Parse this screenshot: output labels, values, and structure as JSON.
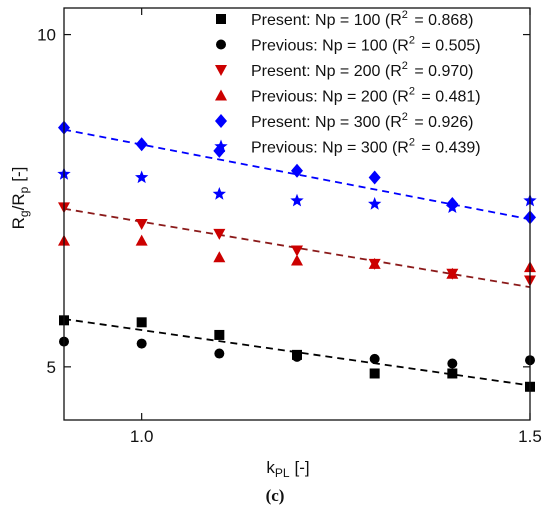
{
  "panel_label": "(c)",
  "chart_data": {
    "type": "scatter",
    "xlabel": "k",
    "xlabel_sub": "PL",
    "xlabel_unit": "[-]",
    "ylabel": "R",
    "ylabel_sub1": "g",
    "ylabel_mid": "/R",
    "ylabel_sub2": "p",
    "ylabel_unit": "[-]",
    "xlim": [
      0.9,
      1.5
    ],
    "ylim": [
      4.2,
      10.4
    ],
    "xticks": [
      1.0,
      1.5
    ],
    "xtick_labels": [
      "1.0",
      "1.5"
    ],
    "yticks": [
      5,
      10
    ],
    "ytick_labels": [
      "5",
      "10"
    ],
    "grid": false,
    "legend_position": "top-right",
    "series": [
      {
        "name": "Present: Np = 100",
        "r2_label": "R",
        "r2_sup": "2",
        "r2_value": "= 0.868",
        "marker": "square",
        "color": "#000000",
        "x": [
          0.9,
          1.0,
          1.1,
          1.2,
          1.3,
          1.4,
          1.5
        ],
        "y": [
          5.7,
          5.67,
          5.48,
          5.18,
          4.9,
          4.9,
          4.7
        ],
        "fit": {
          "x": [
            0.9,
            1.5
          ],
          "y": [
            5.72,
            4.72
          ],
          "color": "#000000"
        }
      },
      {
        "name": "Previous: Np = 100",
        "r2_label": "R",
        "r2_sup": "2",
        "r2_value": "= 0.505",
        "marker": "circle",
        "color": "#000000",
        "x": [
          0.9,
          1.0,
          1.1,
          1.2,
          1.3,
          1.4,
          1.5
        ],
        "y": [
          5.38,
          5.35,
          5.2,
          5.15,
          5.12,
          5.05,
          5.1
        ]
      },
      {
        "name": "Present: Np = 200",
        "r2_label": "R",
        "r2_sup": "2",
        "r2_value": "= 0.970",
        "marker": "triangle-down",
        "color": "#cc0000",
        "x": [
          0.9,
          1.0,
          1.1,
          1.2,
          1.3,
          1.4,
          1.5
        ],
        "y": [
          7.4,
          7.15,
          7.0,
          6.75,
          6.55,
          6.4,
          6.3
        ],
        "fit": {
          "x": [
            0.9,
            1.5
          ],
          "y": [
            7.38,
            6.2
          ],
          "color": "#8b1a1a"
        }
      },
      {
        "name": "Previous: Np = 200",
        "r2_label": "R",
        "r2_sup": "2",
        "r2_value": "= 0.481",
        "marker": "triangle-up",
        "color": "#cc0000",
        "x": [
          0.9,
          1.0,
          1.1,
          1.2,
          1.3,
          1.4,
          1.5
        ],
        "y": [
          6.9,
          6.9,
          6.65,
          6.6,
          6.55,
          6.4,
          6.5
        ]
      },
      {
        "name": "Present: Np = 300",
        "r2_label": "R",
        "r2_sup": "2",
        "r2_value": "= 0.926",
        "marker": "diamond",
        "color": "#0000ff",
        "x": [
          0.9,
          1.0,
          1.1,
          1.2,
          1.3,
          1.4,
          1.5
        ],
        "y": [
          8.6,
          8.35,
          8.25,
          7.95,
          7.85,
          7.45,
          7.25
        ],
        "fit": {
          "x": [
            0.9,
            1.5
          ],
          "y": [
            8.57,
            7.22
          ],
          "color": "#0000ff"
        }
      },
      {
        "name": "Previous: Np =  300",
        "r2_label": "R",
        "r2_sup": "2",
        "r2_value": "= 0.439",
        "marker": "star",
        "color": "#0000ff",
        "x": [
          0.9,
          1.0,
          1.1,
          1.2,
          1.3,
          1.4,
          1.5
        ],
        "y": [
          7.9,
          7.85,
          7.6,
          7.5,
          7.45,
          7.4,
          7.5
        ]
      }
    ]
  }
}
